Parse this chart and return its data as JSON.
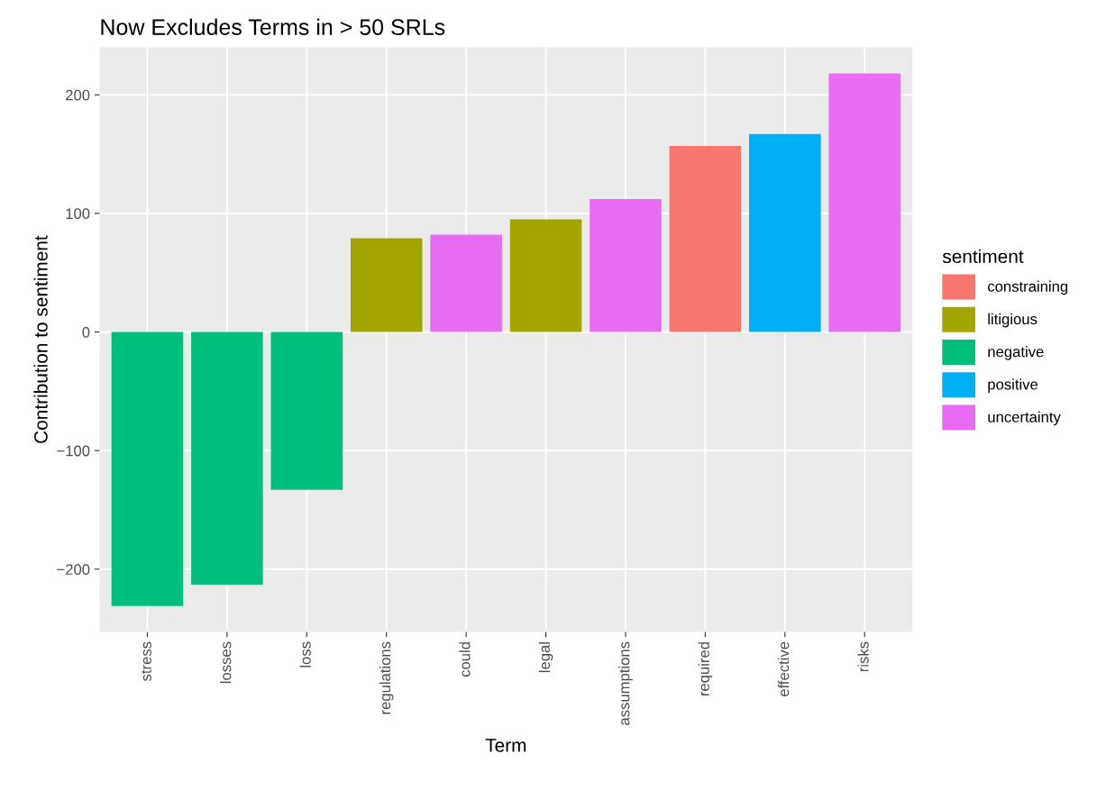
{
  "chart_data": {
    "type": "bar",
    "title": "Now Excludes Terms in > 50 SRLs",
    "xlabel": "Term",
    "ylabel": "Contribution to sentiment",
    "legend_title": "sentiment",
    "categories": [
      "stress",
      "losses",
      "loss",
      "regulations",
      "could",
      "legal",
      "assumptions",
      "required",
      "effective",
      "risks"
    ],
    "series": [
      {
        "name": "constraining",
        "color": "#f8766d",
        "values": [
          null,
          null,
          null,
          null,
          null,
          null,
          null,
          157,
          null,
          null
        ]
      },
      {
        "name": "litigious",
        "color": "#a3a500",
        "values": [
          null,
          null,
          null,
          79,
          null,
          95,
          null,
          null,
          null,
          null
        ]
      },
      {
        "name": "negative",
        "color": "#00bf7d",
        "values": [
          -231,
          -213,
          -133,
          null,
          null,
          null,
          null,
          null,
          null,
          null
        ]
      },
      {
        "name": "positive",
        "color": "#00b0f6",
        "values": [
          null,
          null,
          null,
          null,
          null,
          null,
          null,
          null,
          167,
          null
        ]
      },
      {
        "name": "uncertainty",
        "color": "#e76bf3",
        "values": [
          null,
          null,
          null,
          null,
          82,
          null,
          112,
          null,
          null,
          218
        ]
      }
    ],
    "ylim": [
      -253,
      240
    ],
    "yticks": [
      {
        "value": -200,
        "label": "−200"
      },
      {
        "value": -100,
        "label": "−100"
      },
      0,
      100,
      200
    ],
    "grid": true,
    "legend": "right"
  }
}
